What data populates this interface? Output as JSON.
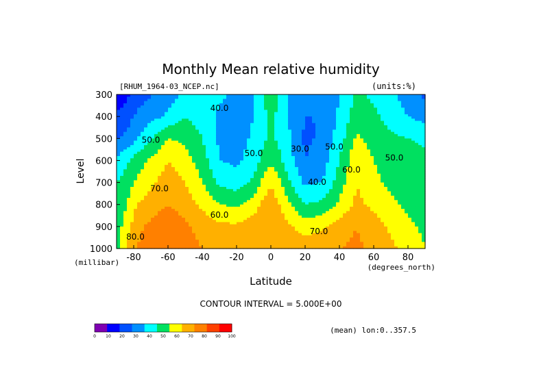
{
  "chart_data": {
    "type": "heatmap",
    "title": "Monthly Mean relative humidity",
    "file_label": "[RHUM_1964-03_NCEP.nc]",
    "units_label": "(units:%)",
    "xlabel": "Latitude",
    "ylabel": "Level",
    "y_unit_label": "(millibar)",
    "x_unit_label": "(degrees_north)",
    "contour_interval_label": "CONTOUR INTERVAL = 5.000E+00",
    "mean_label": "(mean) lon:0..357.5",
    "xlim": [
      -90,
      90
    ],
    "ylim": [
      1000,
      300
    ],
    "x_ticks": [
      -80,
      -60,
      -40,
      -20,
      0,
      20,
      40,
      60,
      80
    ],
    "y_ticks": [
      300,
      400,
      500,
      600,
      700,
      800,
      900,
      1000
    ],
    "contour_labels": [
      {
        "x": -30,
        "y": 375,
        "text": "40.0"
      },
      {
        "x": -70,
        "y": 520,
        "text": "50.0"
      },
      {
        "x": -10,
        "y": 580,
        "text": "50.0"
      },
      {
        "x": 17,
        "y": 560,
        "text": "30.0"
      },
      {
        "x": 37,
        "y": 550,
        "text": "50.0"
      },
      {
        "x": 27,
        "y": 710,
        "text": "40.0"
      },
      {
        "x": 47,
        "y": 655,
        "text": "60.0"
      },
      {
        "x": 72,
        "y": 600,
        "text": "50.0"
      },
      {
        "x": -65,
        "y": 740,
        "text": "70.0"
      },
      {
        "x": -30,
        "y": 860,
        "text": "60.0"
      },
      {
        "x": 28,
        "y": 935,
        "text": "70.0"
      },
      {
        "x": -79,
        "y": 960,
        "text": "80.0"
      }
    ],
    "colorbar": {
      "ticks": [
        "0",
        "10",
        "20",
        "30",
        "40",
        "50",
        "60",
        "70",
        "80",
        "90",
        "100"
      ],
      "colors": [
        "#7f00b2",
        "#0000ff",
        "#0050ff",
        "#0090ff",
        "#00ffff",
        "#00e060",
        "#ffff00",
        "#ffb000",
        "#ff8000",
        "#ff4000",
        "#ff0000"
      ]
    },
    "levels": [
      {
        "y": 300,
        "x": [
          -90,
          -84,
          -78,
          -60,
          -50,
          -40,
          -30,
          -20,
          -10,
          -5,
          0,
          5,
          10,
          20,
          30,
          40,
          50,
          60,
          70,
          80,
          90
        ],
        "v": [
          12,
          18,
          25,
          35,
          42,
          48,
          42,
          38,
          40,
          48,
          55,
          50,
          40,
          32,
          30,
          40,
          52,
          48,
          42,
          35,
          28
        ]
      },
      {
        "y": 400,
        "x": [
          -90,
          -84,
          -78,
          -60,
          -50,
          -40,
          -30,
          -20,
          -10,
          -5,
          0,
          5,
          10,
          20,
          30,
          40,
          50,
          60,
          70,
          80,
          90
        ],
        "v": [
          22,
          26,
          32,
          42,
          50,
          45,
          38,
          35,
          40,
          48,
          52,
          48,
          40,
          30,
          30,
          42,
          55,
          52,
          46,
          40,
          36
        ]
      },
      {
        "y": 500,
        "x": [
          -90,
          -84,
          -78,
          -60,
          -50,
          -40,
          -30,
          -20,
          -10,
          -5,
          0,
          5,
          10,
          20,
          30,
          40,
          50,
          60,
          70,
          80,
          90
        ],
        "v": [
          30,
          32,
          40,
          60,
          58,
          50,
          38,
          35,
          42,
          48,
          52,
          48,
          42,
          28,
          32,
          45,
          62,
          56,
          52,
          50,
          48
        ]
      },
      {
        "y": 600,
        "x": [
          -90,
          -84,
          -78,
          -60,
          -50,
          -40,
          -30,
          -20,
          -10,
          -5,
          0,
          5,
          10,
          20,
          30,
          40,
          50,
          60,
          70,
          80,
          90
        ],
        "v": [
          42,
          48,
          55,
          70,
          64,
          55,
          40,
          38,
          45,
          52,
          58,
          52,
          45,
          30,
          35,
          50,
          68,
          60,
          56,
          54,
          52
        ]
      },
      {
        "y": 700,
        "x": [
          -90,
          -84,
          -78,
          -60,
          -50,
          -40,
          -30,
          -20,
          -10,
          -5,
          0,
          5,
          10,
          20,
          30,
          40,
          50,
          60,
          70,
          80,
          90
        ],
        "v": [
          50,
          55,
          62,
          75,
          70,
          60,
          48,
          45,
          52,
          62,
          70,
          62,
          52,
          38,
          40,
          55,
          70,
          62,
          58,
          56,
          55
        ]
      },
      {
        "y": 800,
        "x": [
          -90,
          -84,
          -78,
          -60,
          -50,
          -40,
          -30,
          -20,
          -10,
          -5,
          0,
          5,
          10,
          20,
          30,
          40,
          50,
          60,
          70,
          80,
          90
        ],
        "v": [
          52,
          60,
          70,
          80,
          75,
          68,
          60,
          58,
          65,
          72,
          75,
          70,
          62,
          50,
          52,
          62,
          72,
          68,
          62,
          58,
          56
        ]
      },
      {
        "y": 900,
        "x": [
          -90,
          -84,
          -78,
          -60,
          -50,
          -40,
          -30,
          -20,
          -10,
          -5,
          0,
          5,
          10,
          20,
          30,
          40,
          50,
          60,
          70,
          80,
          90
        ],
        "v": [
          55,
          65,
          78,
          88,
          82,
          76,
          72,
          72,
          76,
          78,
          78,
          76,
          72,
          65,
          68,
          75,
          80,
          74,
          68,
          62,
          58
        ]
      },
      {
        "y": 1000,
        "x": [
          -90,
          -84,
          -78,
          -60,
          -50,
          -40,
          -30,
          -20,
          -10,
          -5,
          0,
          5,
          10,
          20,
          30,
          40,
          50,
          60,
          70,
          80,
          90
        ],
        "v": [
          58,
          70,
          80,
          90,
          85,
          80,
          78,
          78,
          80,
          80,
          80,
          80,
          78,
          76,
          78,
          80,
          82,
          78,
          72,
          66,
          60
        ]
      }
    ]
  }
}
